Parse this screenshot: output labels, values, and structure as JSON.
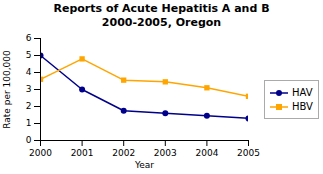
{
  "chart_data": {
    "type": "line",
    "title": "Reports of Acute Hepatitis A and B\n2000-2005, Oregon",
    "x": [
      2000,
      2001,
      2002,
      2003,
      2004,
      2005
    ],
    "series": [
      {
        "name": "HAV",
        "color": "#00008B",
        "marker": "circle",
        "values": [
          5.0,
          3.0,
          1.75,
          1.6,
          1.45,
          1.3
        ]
      },
      {
        "name": "HBV",
        "color": "#FFA500",
        "marker": "square",
        "values": [
          3.6,
          4.8,
          3.55,
          3.45,
          3.1,
          2.6
        ]
      }
    ],
    "xlabel": "Year",
    "ylabel": "Rate per 100,000",
    "xlim": [
      2000,
      2005
    ],
    "xticks": [
      2000,
      2001,
      2002,
      2003,
      2004,
      2005
    ],
    "ylim": [
      0,
      6
    ],
    "yticks": [
      0,
      1,
      2,
      3,
      4,
      5,
      6
    ],
    "grid": false,
    "legend": "right"
  }
}
